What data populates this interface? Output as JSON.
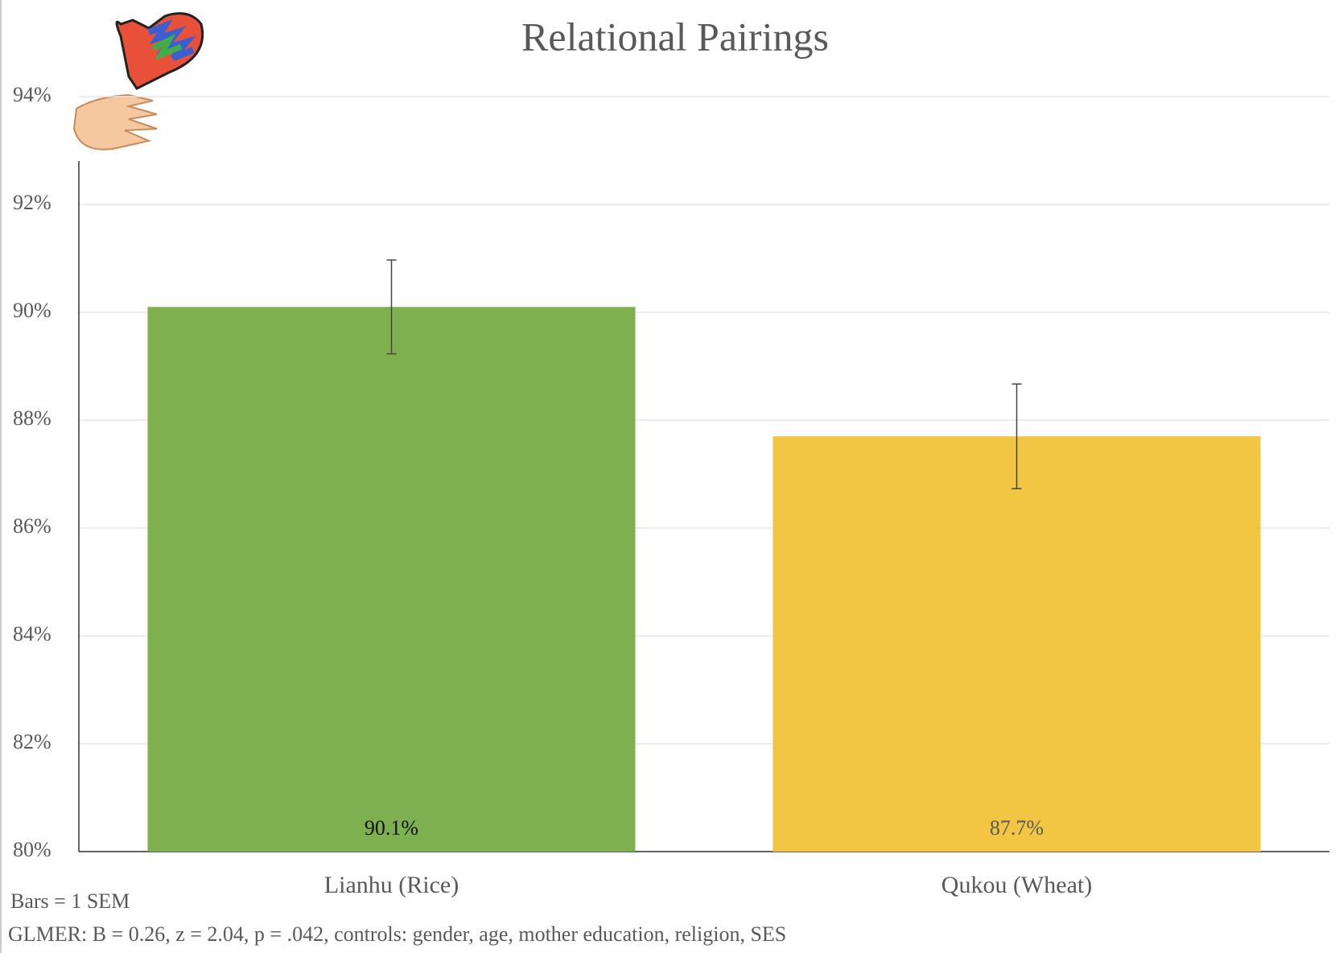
{
  "chart_data": {
    "type": "bar",
    "title": "Relational Pairings",
    "categories": [
      "Lianhu (Rice)",
      "Qukou (Wheat)"
    ],
    "values": [
      90.1,
      87.7
    ],
    "value_labels": [
      "90.1%",
      "87.7%"
    ],
    "errors": [
      0.87,
      0.97
    ],
    "colors": [
      "#7fb04f",
      "#f2c542"
    ],
    "ylim": [
      80,
      94
    ],
    "yticks": [
      {
        "value": 80,
        "label": "80%"
      },
      {
        "value": 82,
        "label": "82%"
      },
      {
        "value": 84,
        "label": "84%"
      },
      {
        "value": 86,
        "label": "86%"
      },
      {
        "value": 88,
        "label": "88%"
      },
      {
        "value": 90,
        "label": "90%"
      },
      {
        "value": 92,
        "label": "92%"
      },
      {
        "value": 94,
        "label": "94%"
      }
    ],
    "grid": true,
    "notes": [
      "Bars = 1 SEM",
      "GLMER: B = 0.26, z = 2.04, p = .042, controls: gender, age, mother education, religion, SES"
    ]
  }
}
